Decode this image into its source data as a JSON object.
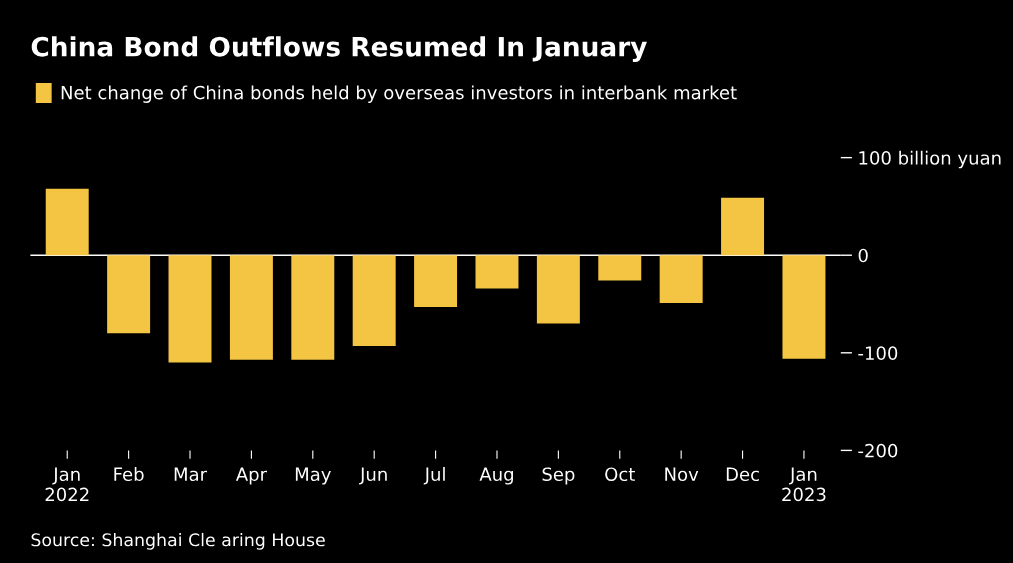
{
  "chart_data": {
    "type": "bar",
    "title": "China Bond Outflows Resumed In January",
    "categories": [
      "Jan\n2022",
      "Feb",
      "Mar",
      "Apr",
      "May",
      "Jun",
      "Jul",
      "Aug",
      "Sep",
      "Oct",
      "Nov",
      "Dec",
      "Jan\n2023"
    ],
    "series": [
      {
        "name": "Net change of China bonds held by overseas investors in interbank market",
        "color": "#f4c443",
        "values": [
          68,
          -80,
          -110,
          -107,
          -107,
          -93,
          -53,
          -34,
          -70,
          -26,
          -49,
          59,
          -106
        ]
      }
    ],
    "ylim": [
      -200,
      100
    ],
    "yticks": [
      {
        "value": 100,
        "label": "100 billion yuan"
      },
      0,
      -100,
      -200
    ],
    "ref_lines": [
      {
        "axis": "y",
        "value": 0,
        "color": "#ffffff"
      }
    ],
    "legend": "top left",
    "grid": false,
    "annotations": [
      "Source: Shanghai Cle aring House"
    ]
  }
}
